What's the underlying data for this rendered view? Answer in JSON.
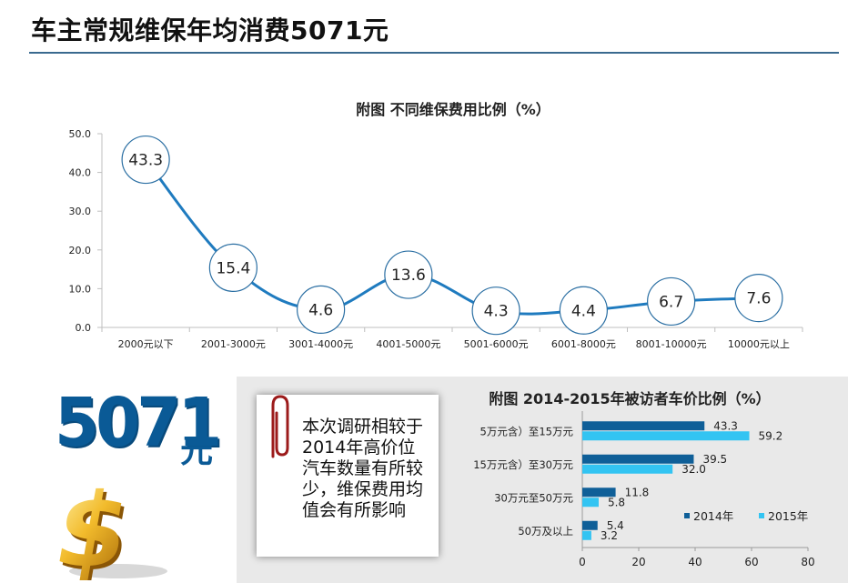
{
  "page": {
    "title": "车主常规维保年均消费5071元"
  },
  "highlight": {
    "number": "5071",
    "unit": "元"
  },
  "note": {
    "text": "本次调研相较于2014年高价位汽车数量有所较少，维保费用均值会有所影响"
  },
  "colors": {
    "title_rule": "#3a6a8f",
    "line": "#1f7bbf",
    "bar_2014": "#0f5f98",
    "bar_2015": "#33c4f2",
    "highlight": "#0a5a96",
    "panel_bg": "#e9e9e9"
  },
  "icons": [
    "paperclip-icon",
    "dollar-sign-icon"
  ],
  "chart_data": [
    {
      "type": "line",
      "title": "附图  不同维保费用比例（%）",
      "categories": [
        "2000元以下",
        "2001-3000元",
        "3001-4000元",
        "4001-5000元",
        "5001-6000元",
        "6001-8000元",
        "8001-10000元",
        "10000元以上"
      ],
      "values": [
        43.3,
        15.4,
        4.6,
        13.6,
        4.3,
        4.4,
        6.7,
        7.6
      ],
      "value_labels": [
        "43.3",
        "15.4",
        "4.6",
        "13.6",
        "4.3",
        "4.4",
        "6.7",
        "7.6"
      ],
      "yticks": [
        "0.0",
        "10.0",
        "20.0",
        "30.0",
        "40.0",
        "50.0"
      ],
      "ylim": [
        0,
        50
      ],
      "grid": false,
      "markers": "circles with value labels"
    },
    {
      "type": "bar",
      "orientation": "horizontal",
      "title": "附图  2014-2015年被访者车价比例（%）",
      "categories": [
        "5万元含）至15万元",
        "15万元含）至30万元",
        "30万元至50万元",
        "50万及以上"
      ],
      "series": [
        {
          "name": "2014年",
          "values": [
            43.3,
            39.5,
            11.8,
            5.4
          ],
          "labels": [
            "43.3",
            "39.5",
            "11.8",
            "5.4"
          ]
        },
        {
          "name": "2015年",
          "values": [
            59.2,
            32.0,
            5.8,
            3.2
          ],
          "labels": [
            "59.2",
            "32.0",
            "5.8",
            "3.2"
          ]
        }
      ],
      "xticks": [
        "0",
        "20",
        "40",
        "60",
        "80"
      ],
      "xlim": [
        0,
        80
      ],
      "legend": "right"
    }
  ]
}
